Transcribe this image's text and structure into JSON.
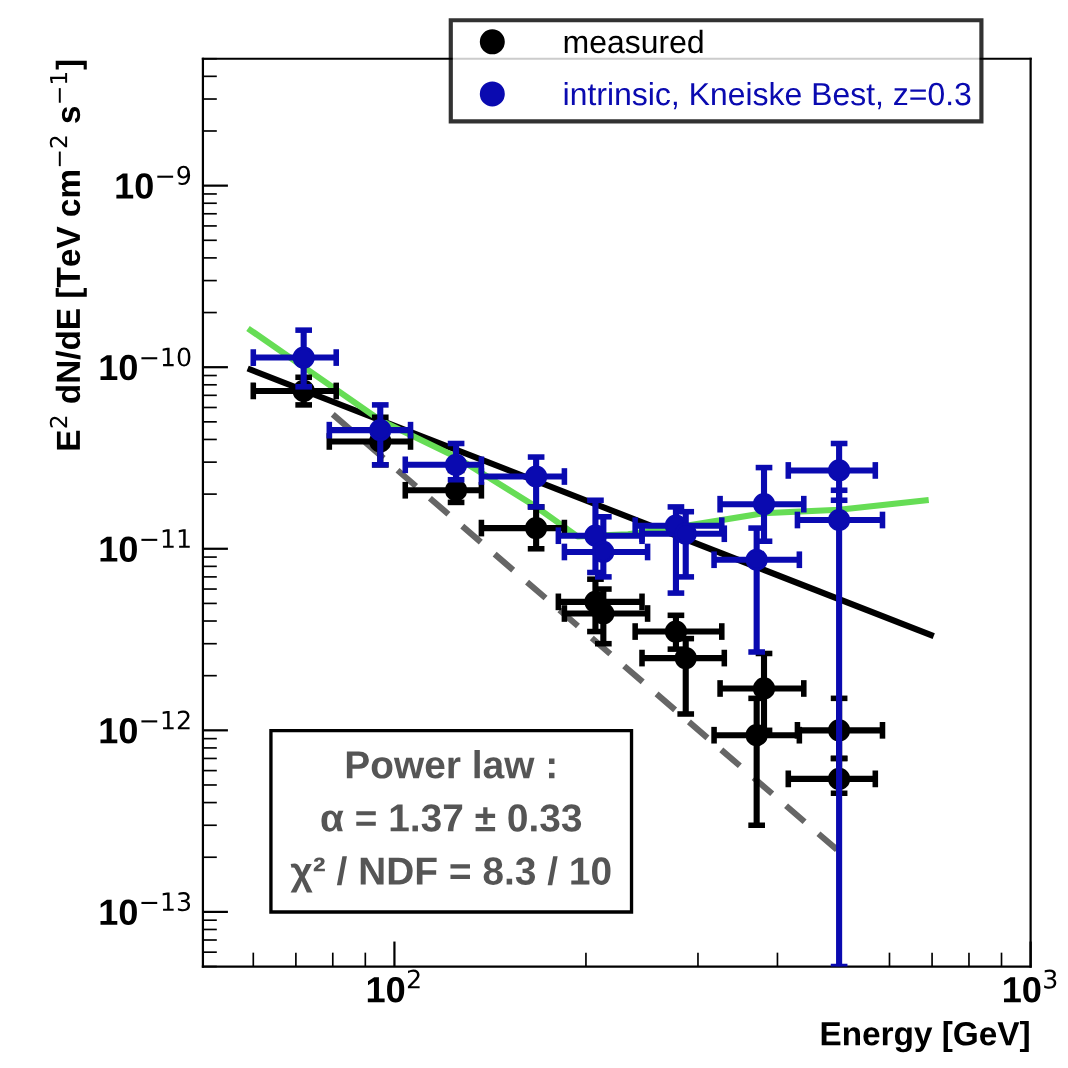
{
  "chart_data": {
    "type": "scatter",
    "xlabel": "Energy [GeV]",
    "ylabel": "E$^{2}$ dN/dE [TeV cm$^{−2}$ s$^{−1}$]",
    "log": "xy",
    "xlim": [
      50,
      1000
    ],
    "ylim": [
      5e-14,
      5e-09
    ],
    "xticks": [
      {
        "value": 100,
        "label": "10$^{2}$"
      },
      {
        "value": 1000,
        "label": "10$^{3}$"
      }
    ],
    "yticks": [
      {
        "value": 1e-13,
        "label": "10$^{−13}$"
      },
      {
        "value": 1e-12,
        "label": "10$^{−12}$"
      },
      {
        "value": 1e-11,
        "label": "10$^{−11}$"
      },
      {
        "value": 1e-10,
        "label": "10$^{−10}$"
      },
      {
        "value": 1e-09,
        "label": "10$^{−9}$"
      }
    ],
    "legend": "top",
    "grid": false,
    "series": [
      {
        "name": "measured",
        "type": "scatter",
        "marker": "circle",
        "color": "#000000",
        "x": [
          72,
          95,
          125,
          167,
          207,
          213,
          277,
          287,
          371,
          381,
          500,
          500
        ],
        "values": [
          7.4e-11,
          3.9e-11,
          2.1e-11,
          1.3e-11,
          5.1e-12,
          4.4e-12,
          3.5e-12,
          2.5e-12,
          9.4e-13,
          1.7e-12,
          1e-12,
          5.4e-13
        ],
        "errors": [
          [
            6.2e-11,
            8.8e-11
          ],
          [
            2.9e-11,
            5.3e-11
          ],
          [
            1.8e-11,
            2.7e-11
          ],
          [
            1e-11,
            1.7e-11
          ],
          [
            3.5e-12,
            6.8e-12
          ],
          [
            3e-12,
            6e-12
          ],
          [
            2.8e-12,
            4.3e-12
          ],
          [
            1.23e-12,
            3.2e-12
          ],
          [
            3e-13,
            1.5e-12
          ],
          [
            1e-12,
            2.65e-12
          ],
          [
            7e-13,
            1.5e-12
          ],
          [
            4.5e-13,
            7e-13
          ]
        ],
        "xerrors": [
          [
            60,
            81
          ],
          [
            79,
            106
          ],
          [
            104,
            137
          ],
          [
            137,
            185
          ],
          [
            181,
            245
          ],
          [
            185,
            250
          ],
          [
            239,
            327
          ],
          [
            245,
            330
          ],
          [
            318,
            433
          ],
          [
            325,
            440
          ],
          [
            430,
            585
          ],
          [
            416,
            570
          ]
        ]
      },
      {
        "name": "intrinsic, Kneiske Best, z=0.3",
        "type": "scatter",
        "marker": "circle",
        "color": "#0a0ab0",
        "x": [
          72,
          95,
          125,
          167,
          207,
          213,
          277,
          287,
          371,
          381,
          500,
          500
        ],
        "values": [
          1.13e-10,
          4.5e-11,
          2.9e-11,
          2.5e-11,
          1.18e-11,
          9.6e-12,
          1.34e-11,
          1.21e-11,
          8.7e-12,
          1.76e-11,
          1.44e-11,
          2.7e-11
        ],
        "errors": [
          [
            7.8e-11,
            1.6e-10
          ],
          [
            2.9e-11,
            6.2e-11
          ],
          [
            2.4e-11,
            3.8e-11
          ],
          [
            1.7e-11,
            3.2e-11
          ],
          [
            7.4e-12,
            1.85e-11
          ],
          [
            7e-12,
            1.5e-11
          ],
          [
            5.7e-12,
            1.7e-11
          ],
          [
            7e-12,
            1.6e-11
          ],
          [
            2.7e-12,
            1.3e-11
          ],
          [
            1.1e-11,
            2.8e-11
          ],
          [
            5e-14,
            2.1e-11
          ],
          [
            1.85e-11,
            3.8e-11
          ]
        ],
        "xerrors": [
          [
            60,
            81
          ],
          [
            79,
            106
          ],
          [
            104,
            137
          ],
          [
            137,
            185
          ],
          [
            181,
            245
          ],
          [
            185,
            250
          ],
          [
            239,
            327
          ],
          [
            245,
            330
          ],
          [
            318,
            433
          ],
          [
            325,
            440
          ],
          [
            430,
            585
          ],
          [
            416,
            570
          ]
        ]
      },
      {
        "type": "line",
        "marker": "none",
        "color": "#000000",
        "line_style": "solid",
        "x": [
          59.4,
          697
        ],
        "values": [
          9.7e-11,
          3.35e-12
        ]
      },
      {
        "type": "line",
        "marker": "none",
        "color": "#66dd55",
        "line_style": "solid",
        "x": [
          59.4,
          95,
          125,
          167,
          194,
          233,
          281,
          380,
          500,
          684
        ],
        "values": [
          1.6e-10,
          5.1e-11,
          3.2e-11,
          1.7e-11,
          1.17e-11,
          1.2e-11,
          1.32e-11,
          1.57e-11,
          1.64e-11,
          1.85e-11
        ]
      },
      {
        "type": "line",
        "marker": "none",
        "color": "#666666",
        "line_style": "dashed",
        "x": [
          80,
          500
        ],
        "values": [
          5.5e-11,
          2.15e-13
        ]
      }
    ],
    "annotations": [
      "Power law :",
      "α = 1.37 ± 0.33",
      "χ² / NDF = 8.3 / 10"
    ]
  }
}
